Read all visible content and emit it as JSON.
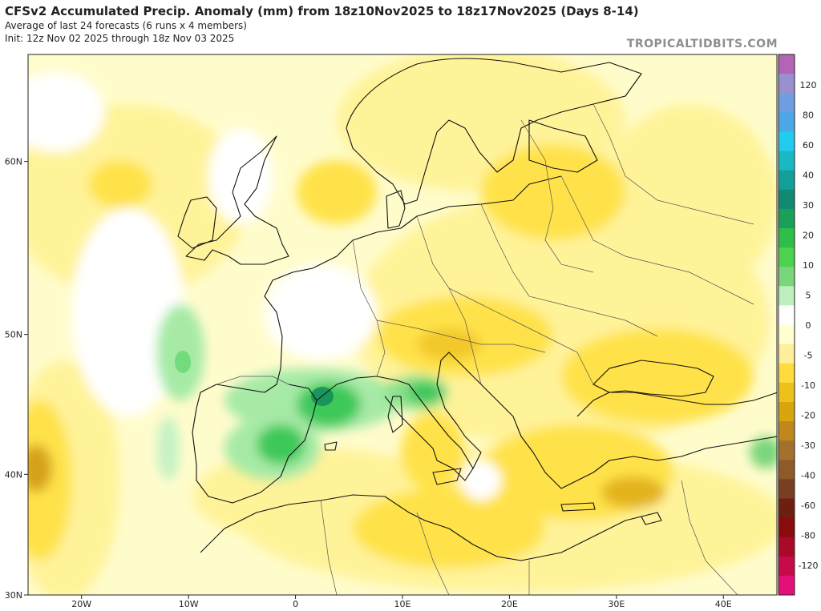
{
  "header": {
    "title": "CFSv2 Accumulated Precip. Anomaly (mm) from 18z10Nov2025 to 18z17Nov2025 (Days 8-14)",
    "subtitle1": "Average of last 24 forecasts (6 runs x 4 members)",
    "subtitle2": "Init: 12z Nov 02 2025 through 18z Nov 03 2025",
    "brand": "TROPICALTIDBITS.COM"
  },
  "axes": {
    "lat_labels": [
      {
        "label": "60N",
        "lat": 60
      },
      {
        "label": "50N",
        "lat": 50
      },
      {
        "label": "40N",
        "lat": 40
      },
      {
        "label": "30N",
        "lat": 30
      }
    ],
    "lon_labels": [
      {
        "label": "20W",
        "lon": -20
      },
      {
        "label": "10W",
        "lon": -10
      },
      {
        "label": "0",
        "lon": 0
      },
      {
        "label": "10E",
        "lon": 10
      },
      {
        "label": "20E",
        "lon": 20
      },
      {
        "label": "30E",
        "lon": 30
      },
      {
        "label": "40E",
        "lon": 40
      }
    ],
    "lat_range": [
      30,
      65
    ],
    "lon_range": [
      -25,
      45
    ]
  },
  "colorbar": {
    "labels": [
      "120",
      "80",
      "60",
      "40",
      "30",
      "20",
      "10",
      "5",
      "0",
      "-5",
      "-10",
      "-20",
      "-30",
      "-40",
      "-60",
      "-80",
      "-120"
    ],
    "colors": [
      "#b464b4",
      "#9a8fcf",
      "#6f9fe0",
      "#4aa8e8",
      "#22ccee",
      "#19b9c4",
      "#13a09a",
      "#118a74",
      "#1aa058",
      "#2ebe4a",
      "#4cd24c",
      "#7ad67a",
      "#bdf0bd",
      "#ffffff",
      "#ffffd0",
      "#ffef9a",
      "#ffdc3c",
      "#ecc21a",
      "#d7a60e",
      "#c0881c",
      "#a4712c",
      "#8e5a2a",
      "#7a3e22",
      "#6e2010",
      "#880c0c",
      "#a80a28",
      "#c80a4c",
      "#e4107a"
    ]
  }
}
